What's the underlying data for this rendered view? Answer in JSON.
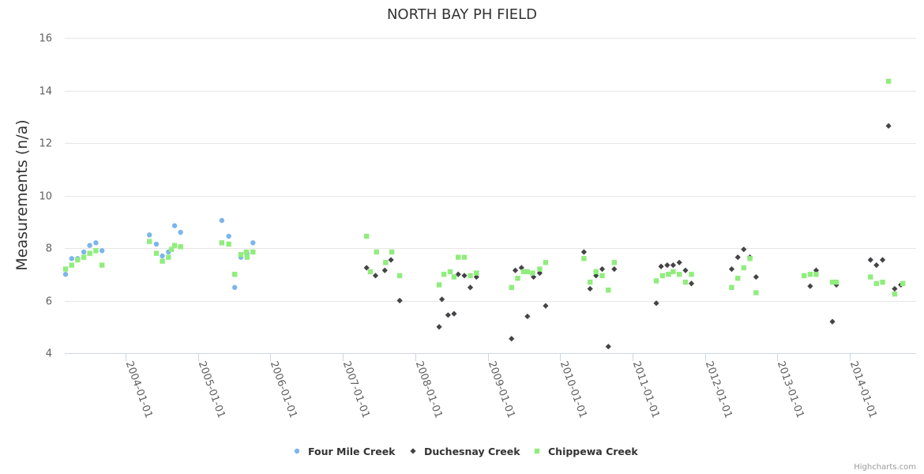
{
  "chart_data": {
    "type": "scatter",
    "title": "NORTH BAY PH FIELD",
    "xlabel": "",
    "ylabel": "Measurements (n/a)",
    "ylim": [
      4,
      16
    ],
    "yticks": [
      4,
      6,
      8,
      10,
      12,
      14,
      16
    ],
    "xlim": [
      "2003-03-01",
      "2014-12-01"
    ],
    "xticks": [
      "2004-01-01",
      "2005-01-01",
      "2006-01-01",
      "2007-01-01",
      "2008-01-01",
      "2009-01-01",
      "2010-01-01",
      "2011-01-01",
      "2012-01-01",
      "2013-01-01",
      "2014-01-01"
    ],
    "grid": true,
    "legend_position": "bottom-center",
    "credits": "Highcharts.com",
    "series": [
      {
        "name": "Four Mile Creek",
        "color": "#7cb5ec",
        "marker": "circle",
        "points": [
          [
            "2003-03-05",
            7.0
          ],
          [
            "2003-04-05",
            7.6
          ],
          [
            "2003-05-05",
            7.6
          ],
          [
            "2003-06-05",
            7.85
          ],
          [
            "2003-07-05",
            8.1
          ],
          [
            "2003-08-05",
            8.2
          ],
          [
            "2003-09-05",
            7.9
          ],
          [
            "2004-05-01",
            8.5
          ],
          [
            "2004-06-05",
            8.15
          ],
          [
            "2004-07-05",
            7.7
          ],
          [
            "2004-08-05",
            7.85
          ],
          [
            "2004-09-05",
            8.85
          ],
          [
            "2004-10-05",
            8.6
          ],
          [
            "2005-05-01",
            9.05
          ],
          [
            "2005-06-05",
            8.45
          ],
          [
            "2005-07-05",
            6.5
          ],
          [
            "2005-08-05",
            7.65
          ],
          [
            "2005-09-05",
            7.8
          ],
          [
            "2005-10-05",
            8.2
          ]
        ]
      },
      {
        "name": "Duchesnay Creek",
        "color": "#434348",
        "marker": "diamond",
        "points": [
          [
            "2007-05-01",
            7.25
          ],
          [
            "2007-06-15",
            6.95
          ],
          [
            "2007-08-01",
            7.15
          ],
          [
            "2007-09-01",
            7.55
          ],
          [
            "2007-10-15",
            6.0
          ],
          [
            "2008-05-01",
            5.0
          ],
          [
            "2008-05-15",
            6.05
          ],
          [
            "2008-06-15",
            5.45
          ],
          [
            "2008-07-15",
            5.5
          ],
          [
            "2008-08-05",
            7.0
          ],
          [
            "2008-09-05",
            6.95
          ],
          [
            "2008-10-05",
            6.5
          ],
          [
            "2008-11-05",
            6.9
          ],
          [
            "2009-05-01",
            4.55
          ],
          [
            "2009-05-20",
            7.15
          ],
          [
            "2009-06-20",
            7.25
          ],
          [
            "2009-07-20",
            5.4
          ],
          [
            "2009-08-20",
            6.9
          ],
          [
            "2009-09-20",
            7.05
          ],
          [
            "2009-10-20",
            5.8
          ],
          [
            "2010-05-01",
            7.85
          ],
          [
            "2010-06-01",
            6.45
          ],
          [
            "2010-07-01",
            6.95
          ],
          [
            "2010-08-01",
            7.2
          ],
          [
            "2010-09-01",
            4.25
          ],
          [
            "2010-10-01",
            7.2
          ],
          [
            "2011-05-01",
            5.9
          ],
          [
            "2011-05-25",
            7.3
          ],
          [
            "2011-06-25",
            7.35
          ],
          [
            "2011-07-25",
            7.35
          ],
          [
            "2011-08-25",
            7.45
          ],
          [
            "2011-09-25",
            7.15
          ],
          [
            "2011-10-25",
            6.65
          ],
          [
            "2012-05-15",
            7.2
          ],
          [
            "2012-06-15",
            7.65
          ],
          [
            "2012-07-15",
            7.95
          ],
          [
            "2012-08-15",
            7.65
          ],
          [
            "2012-09-15",
            6.9
          ],
          [
            "2013-06-15",
            6.55
          ],
          [
            "2013-07-15",
            7.15
          ],
          [
            "2013-10-05",
            5.2
          ],
          [
            "2013-10-25",
            6.6
          ],
          [
            "2014-04-15",
            7.55
          ],
          [
            "2014-05-15",
            7.35
          ],
          [
            "2014-06-15",
            7.55
          ],
          [
            "2014-07-15",
            12.65
          ],
          [
            "2014-08-15",
            6.45
          ],
          [
            "2014-09-15",
            6.6
          ]
        ]
      },
      {
        "name": "Chippewa Creek",
        "color": "#90ed7d",
        "marker": "square",
        "points": [
          [
            "2003-03-05",
            7.2
          ],
          [
            "2003-04-05",
            7.35
          ],
          [
            "2003-05-05",
            7.55
          ],
          [
            "2003-06-05",
            7.65
          ],
          [
            "2003-07-05",
            7.8
          ],
          [
            "2003-08-05",
            7.9
          ],
          [
            "2003-09-05",
            7.35
          ],
          [
            "2004-05-01",
            8.25
          ],
          [
            "2004-06-05",
            7.8
          ],
          [
            "2004-07-05",
            7.5
          ],
          [
            "2004-08-05",
            7.65
          ],
          [
            "2004-09-05",
            8.1
          ],
          [
            "2004-10-05",
            8.05
          ],
          [
            "2004-08-20",
            7.95
          ],
          [
            "2005-05-01",
            8.2
          ],
          [
            "2005-06-05",
            8.15
          ],
          [
            "2005-07-05",
            7.0
          ],
          [
            "2005-08-05",
            7.75
          ],
          [
            "2005-09-05",
            7.65
          ],
          [
            "2005-10-05",
            7.85
          ],
          [
            "2005-09-01",
            7.85
          ],
          [
            "2007-05-01",
            8.45
          ],
          [
            "2007-05-20",
            7.1
          ],
          [
            "2007-06-20",
            7.85
          ],
          [
            "2007-08-05",
            7.45
          ],
          [
            "2007-09-05",
            7.85
          ],
          [
            "2007-10-15",
            6.95
          ],
          [
            "2008-05-01",
            6.6
          ],
          [
            "2008-05-25",
            7.0
          ],
          [
            "2008-06-25",
            7.1
          ],
          [
            "2008-07-15",
            6.9
          ],
          [
            "2008-08-05",
            7.65
          ],
          [
            "2008-09-05",
            7.65
          ],
          [
            "2008-10-05",
            6.95
          ],
          [
            "2008-11-05",
            7.05
          ],
          [
            "2009-05-01",
            6.5
          ],
          [
            "2009-06-01",
            6.85
          ],
          [
            "2009-07-01",
            7.1
          ],
          [
            "2009-07-20",
            7.1
          ],
          [
            "2009-08-15",
            7.05
          ],
          [
            "2009-09-20",
            7.2
          ],
          [
            "2009-10-20",
            7.45
          ],
          [
            "2010-05-01",
            7.6
          ],
          [
            "2010-06-01",
            6.7
          ],
          [
            "2010-07-01",
            7.1
          ],
          [
            "2010-08-01",
            6.95
          ],
          [
            "2010-09-01",
            6.4
          ],
          [
            "2010-10-01",
            7.45
          ],
          [
            "2011-05-01",
            6.75
          ],
          [
            "2011-06-01",
            6.95
          ],
          [
            "2011-07-01",
            7.0
          ],
          [
            "2011-07-25",
            7.1
          ],
          [
            "2011-08-25",
            7.0
          ],
          [
            "2011-09-25",
            6.7
          ],
          [
            "2011-10-25",
            7.0
          ],
          [
            "2012-05-15",
            6.5
          ],
          [
            "2012-06-15",
            6.85
          ],
          [
            "2012-07-15",
            7.25
          ],
          [
            "2012-08-15",
            7.6
          ],
          [
            "2012-09-15",
            6.3
          ],
          [
            "2013-05-15",
            6.95
          ],
          [
            "2013-06-15",
            7.0
          ],
          [
            "2013-07-15",
            7.0
          ],
          [
            "2013-10-05",
            6.7
          ],
          [
            "2013-10-25",
            6.7
          ],
          [
            "2014-04-15",
            6.9
          ],
          [
            "2014-05-15",
            6.65
          ],
          [
            "2014-06-15",
            6.7
          ],
          [
            "2014-07-15",
            14.35
          ],
          [
            "2014-08-15",
            6.25
          ],
          [
            "2014-09-25",
            6.65
          ]
        ]
      }
    ]
  }
}
